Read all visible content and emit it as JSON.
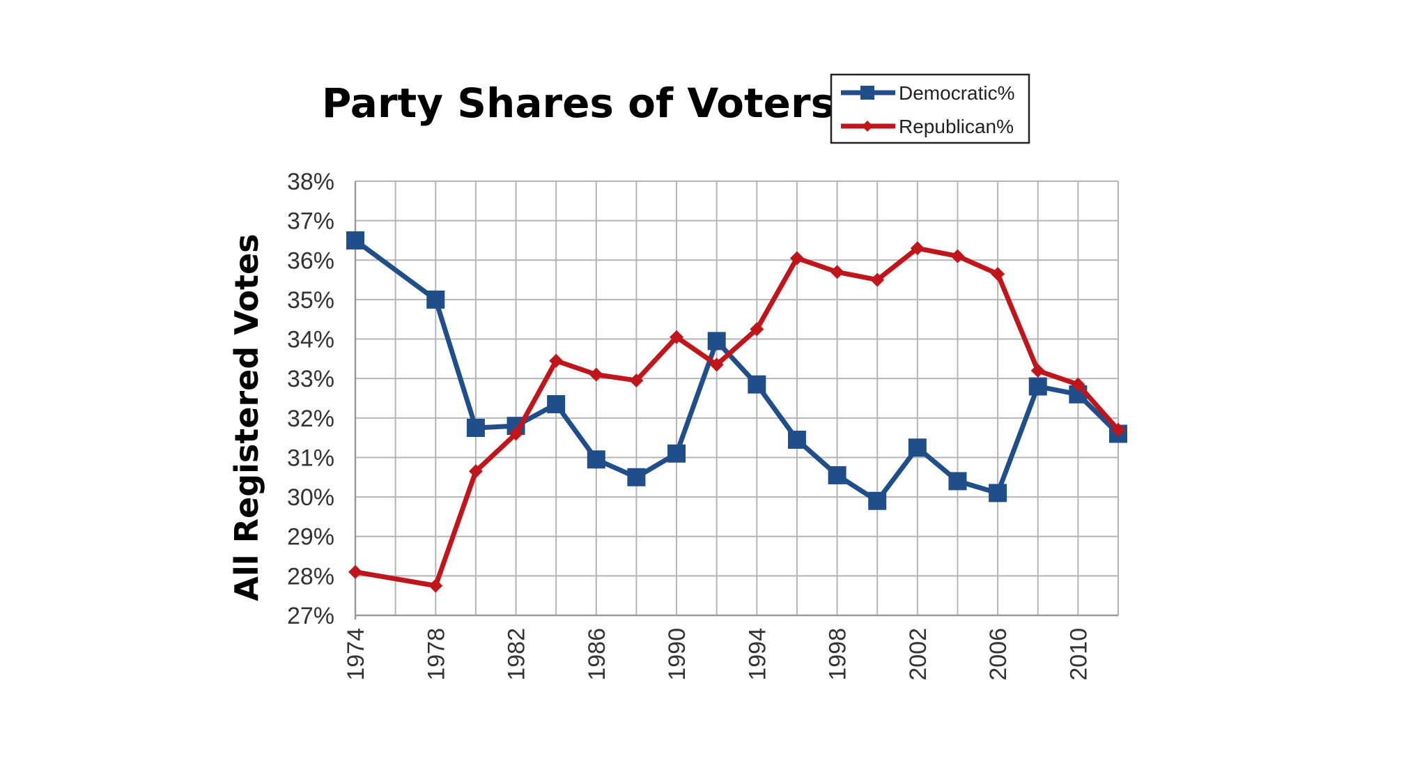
{
  "chart_data": {
    "type": "line",
    "title": "Party Shares of Voters",
    "xlabel": "",
    "ylabel": "All Registered Votes",
    "x": [
      1974,
      1976,
      1978,
      1980,
      1982,
      1984,
      1986,
      1988,
      1990,
      1992,
      1994,
      1996,
      1998,
      2000,
      2002,
      2004,
      2006,
      2008,
      2010,
      2012
    ],
    "x_tick_labels": [
      "1974",
      "1978",
      "1982",
      "1986",
      "1990",
      "1994",
      "1998",
      "2002",
      "2006",
      "2010"
    ],
    "y_tick_labels": [
      "38%",
      "37%",
      "36%",
      "35%",
      "34%",
      "33%",
      "32%",
      "31%",
      "30%",
      "29%",
      "28%",
      "27%"
    ],
    "xlim": [
      1974,
      2012
    ],
    "ylim": [
      27,
      38
    ],
    "grid": true,
    "legend_position": "top-right",
    "series": [
      {
        "name": "Democratic%",
        "color": "#1f4e8a",
        "marker": "square",
        "points": [
          [
            1974,
            36.5
          ],
          [
            1978,
            35.0
          ],
          [
            1980,
            31.75
          ],
          [
            1982,
            31.8
          ],
          [
            1984,
            32.35
          ],
          [
            1986,
            30.95
          ],
          [
            1988,
            30.5
          ],
          [
            1990,
            31.1
          ],
          [
            1992,
            33.95
          ],
          [
            1994,
            32.85
          ],
          [
            1996,
            31.45
          ],
          [
            1998,
            30.55
          ],
          [
            2000,
            29.9
          ],
          [
            2002,
            31.25
          ],
          [
            2004,
            30.4
          ],
          [
            2006,
            30.1
          ],
          [
            2008,
            32.8
          ],
          [
            2010,
            32.6
          ],
          [
            2012,
            31.6
          ]
        ]
      },
      {
        "name": "Republican%",
        "color": "#c0161b",
        "marker": "diamond",
        "points": [
          [
            1974,
            28.1
          ],
          [
            1978,
            27.75
          ],
          [
            1980,
            30.65
          ],
          [
            1982,
            31.6
          ],
          [
            1984,
            33.45
          ],
          [
            1986,
            33.1
          ],
          [
            1988,
            32.95
          ],
          [
            1990,
            34.05
          ],
          [
            1992,
            33.35
          ],
          [
            1994,
            34.25
          ],
          [
            1996,
            36.05
          ],
          [
            1998,
            35.7
          ],
          [
            2000,
            35.5
          ],
          [
            2002,
            36.3
          ],
          [
            2004,
            36.1
          ],
          [
            2006,
            35.65
          ],
          [
            2008,
            33.2
          ],
          [
            2010,
            32.85
          ],
          [
            2012,
            31.7
          ]
        ]
      }
    ]
  }
}
